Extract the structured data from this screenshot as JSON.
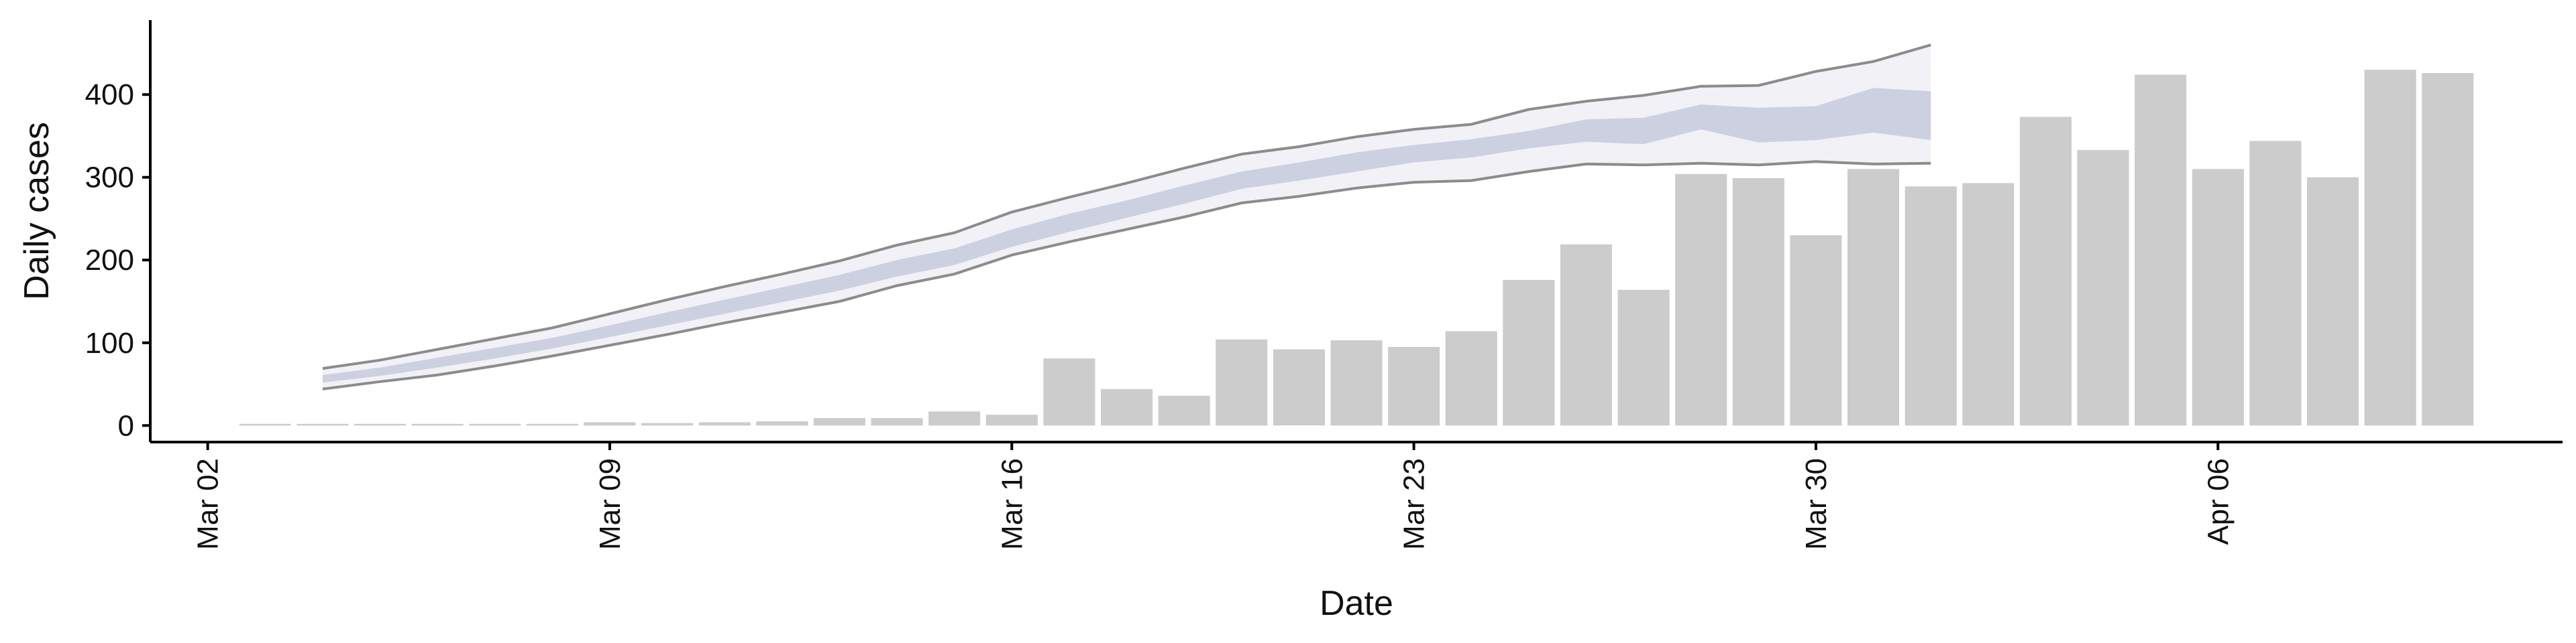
{
  "chart_data": {
    "type": "bar",
    "xlabel": "Date",
    "ylabel": "Daily cases",
    "ylim": [
      -20,
      490
    ],
    "xlim": [
      "2020-03-01",
      "2020-04-12"
    ],
    "xticks": [
      {
        "date": "2020-03-02",
        "label": "Mar 02"
      },
      {
        "date": "2020-03-09",
        "label": "Mar 09"
      },
      {
        "date": "2020-03-16",
        "label": "Mar 16"
      },
      {
        "date": "2020-03-23",
        "label": "Mar 23"
      },
      {
        "date": "2020-03-30",
        "label": "Mar 30"
      },
      {
        "date": "2020-04-06",
        "label": "Apr 06"
      }
    ],
    "yticks": [
      0,
      100,
      200,
      300,
      400
    ],
    "bars": {
      "color": "#cccccc",
      "dates": [
        "2020-03-03",
        "2020-03-04",
        "2020-03-05",
        "2020-03-06",
        "2020-03-07",
        "2020-03-08",
        "2020-03-09",
        "2020-03-10",
        "2020-03-11",
        "2020-03-12",
        "2020-03-13",
        "2020-03-14",
        "2020-03-15",
        "2020-03-16",
        "2020-03-17",
        "2020-03-18",
        "2020-03-19",
        "2020-03-20",
        "2020-03-21",
        "2020-03-22",
        "2020-03-23",
        "2020-03-24",
        "2020-03-25",
        "2020-03-26",
        "2020-03-27",
        "2020-03-28",
        "2020-03-29",
        "2020-03-30",
        "2020-03-31",
        "2020-04-01",
        "2020-04-02",
        "2020-04-03",
        "2020-04-04",
        "2020-04-05",
        "2020-04-06",
        "2020-04-07",
        "2020-04-08",
        "2020-04-09",
        "2020-04-10"
      ],
      "values": [
        1,
        1,
        1,
        1,
        0,
        0,
        4,
        3,
        4,
        5,
        9,
        9,
        17,
        13,
        81,
        44,
        36,
        104,
        92,
        103,
        95,
        114,
        176,
        219,
        164,
        304,
        299,
        230,
        310,
        289,
        293,
        373,
        333,
        424,
        310,
        344,
        300,
        430,
        426
      ]
    },
    "estimate": {
      "line_color": "#7f7f7f",
      "band_outer_color": "#dfe0ec",
      "band_inner_color": "#c3c8dc",
      "dates": [
        "2020-03-04",
        "2020-03-05",
        "2020-03-06",
        "2020-03-07",
        "2020-03-08",
        "2020-03-09",
        "2020-03-10",
        "2020-03-11",
        "2020-03-12",
        "2020-03-13",
        "2020-03-14",
        "2020-03-15",
        "2020-03-16",
        "2020-03-17",
        "2020-03-18",
        "2020-03-19",
        "2020-03-20",
        "2020-03-21",
        "2020-03-22",
        "2020-03-23",
        "2020-03-24",
        "2020-03-25",
        "2020-03-26",
        "2020-03-27",
        "2020-03-28",
        "2020-03-29",
        "2020-03-30",
        "2020-03-31",
        "2020-04-01"
      ],
      "upper": [
        69,
        79,
        92,
        105,
        118,
        135,
        152,
        168,
        183,
        199,
        218,
        233,
        258,
        276,
        293,
        311,
        328,
        337,
        349,
        358,
        364,
        382,
        392,
        399,
        410,
        411,
        428,
        440,
        460
      ],
      "inner_upper": [
        61,
        70,
        82,
        94,
        106,
        121,
        137,
        152,
        167,
        182,
        200,
        214,
        237,
        256,
        272,
        290,
        307,
        318,
        330,
        339,
        346,
        356,
        370,
        372,
        388,
        384,
        386,
        408,
        404
      ],
      "inner_lower": [
        52,
        60,
        70,
        81,
        93,
        107,
        121,
        135,
        149,
        163,
        180,
        194,
        216,
        234,
        251,
        268,
        286,
        296,
        307,
        318,
        324,
        335,
        343,
        340,
        358,
        342,
        345,
        354,
        345
      ],
      "lower": [
        44,
        53,
        61,
        72,
        84,
        97,
        110,
        124,
        137,
        150,
        169,
        183,
        206,
        222,
        237,
        252,
        269,
        277,
        287,
        294,
        296,
        307,
        316,
        315,
        317,
        315,
        319,
        316,
        317
      ]
    }
  }
}
